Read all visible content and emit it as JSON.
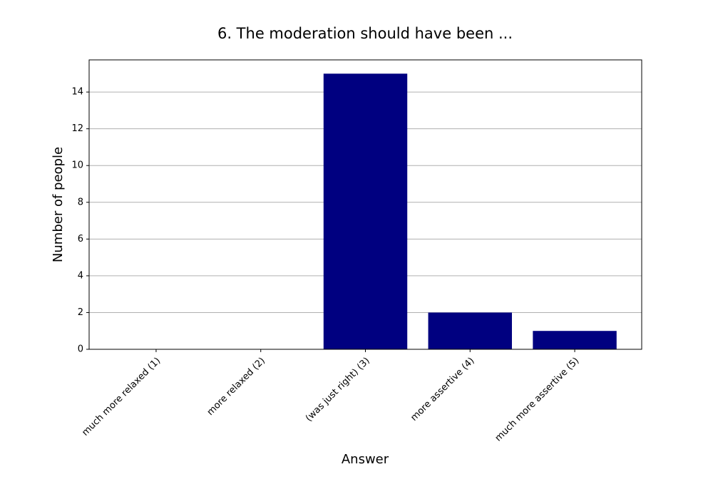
{
  "chart_data": {
    "type": "bar",
    "title": "6. The moderation should have been ...",
    "x_label": "Answer",
    "y_label": "Number of people",
    "categories": [
      "much more relaxed (1)",
      "more relaxed (2)",
      "(was just right) (3)",
      "more assertive (4)",
      "much more assertive (5)"
    ],
    "values": [
      0,
      0,
      15,
      2,
      1
    ],
    "color": "#000080",
    "ylim": [
      0,
      15.75
    ],
    "yticks": [
      0,
      2,
      4,
      6,
      8,
      10,
      12,
      14
    ],
    "grid": true
  }
}
